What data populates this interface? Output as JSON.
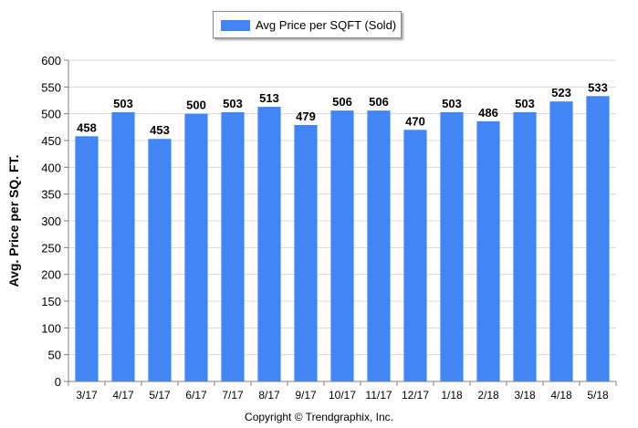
{
  "chart_data": {
    "type": "bar",
    "categories": [
      "3/17",
      "4/17",
      "5/17",
      "6/17",
      "7/17",
      "8/17",
      "9/17",
      "10/17",
      "11/17",
      "12/17",
      "1/18",
      "2/18",
      "3/18",
      "4/18",
      "5/18"
    ],
    "series": [
      {
        "name": "Avg Price per SQFT (Sold)",
        "values": [
          458,
          503,
          453,
          500,
          503,
          513,
          479,
          506,
          506,
          470,
          503,
          486,
          503,
          523,
          533
        ]
      }
    ],
    "ylabel": "Avg. Price per SQ. FT.",
    "xlabel": "",
    "ylim": [
      0,
      600
    ],
    "yticks": [
      0,
      50,
      100,
      150,
      200,
      250,
      300,
      350,
      400,
      450,
      500,
      550,
      600
    ],
    "grid": true,
    "legend": "top-center",
    "data_labels": true,
    "bar_color": "#4285f4"
  },
  "footer": {
    "copyright": "Copyright © Trendgraphix, Inc."
  }
}
